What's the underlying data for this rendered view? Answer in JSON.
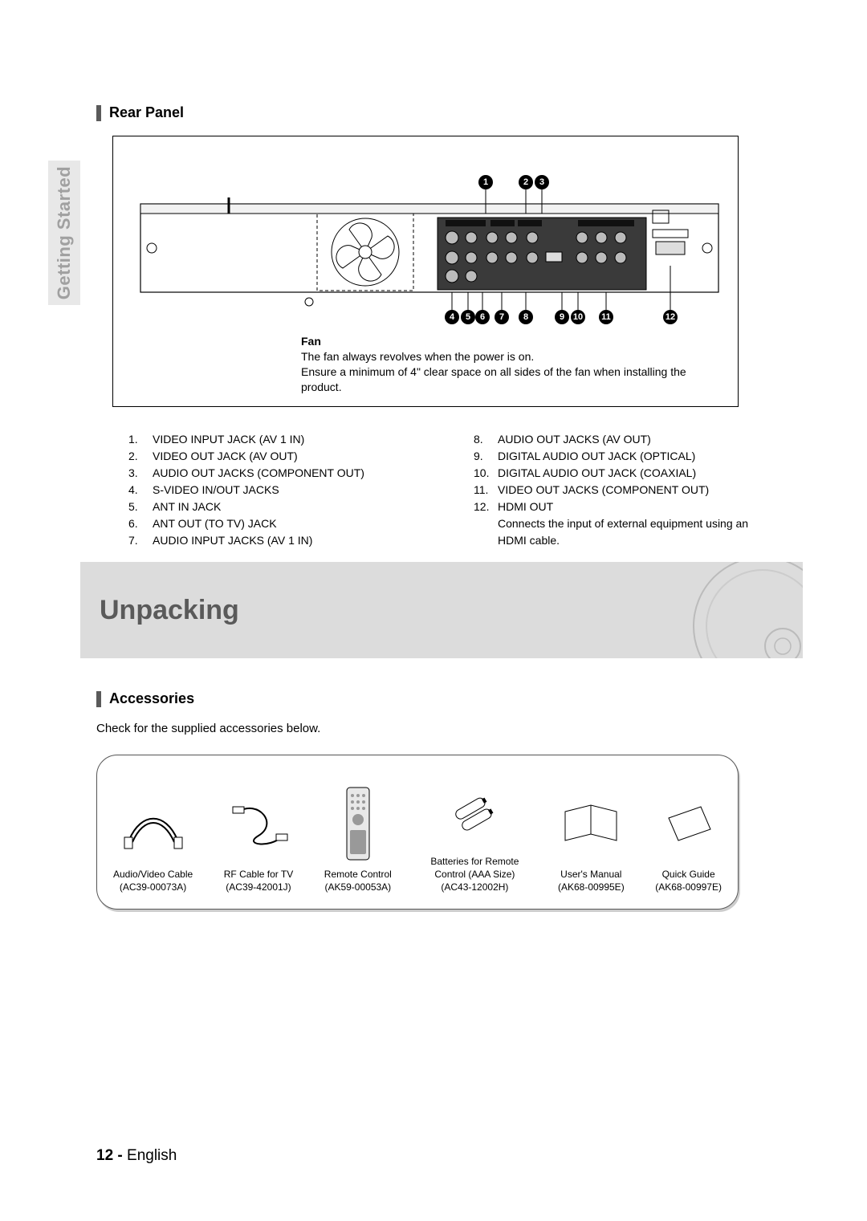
{
  "side_tab": "Getting Started",
  "rear_panel": {
    "title": "Rear Panel",
    "fan_label": "Fan",
    "fan_text1": "The fan always revolves when the power is on.",
    "fan_text2": "Ensure a minimum of 4\" clear space on all sides of the fan when installing the product.",
    "callouts_top": [
      "1",
      "2",
      "3"
    ],
    "callouts_bottom": [
      "4",
      "5",
      "6",
      "7",
      "8",
      "9",
      "10",
      "11",
      "12"
    ],
    "jacks_left": [
      {
        "n": "1.",
        "t": "VIDEO INPUT JACK (AV 1 IN)"
      },
      {
        "n": "2.",
        "t": "VIDEO OUT JACK (AV OUT)"
      },
      {
        "n": "3.",
        "t": "AUDIO OUT JACKS (COMPONENT OUT)"
      },
      {
        "n": "4.",
        "t": "S-VIDEO IN/OUT JACKS"
      },
      {
        "n": "5.",
        "t": "ANT IN JACK"
      },
      {
        "n": "6.",
        "t": "ANT OUT (TO TV) JACK"
      },
      {
        "n": "7.",
        "t": "AUDIO INPUT JACKS (AV 1 IN)"
      }
    ],
    "jacks_right": [
      {
        "n": "8.",
        "t": "AUDIO OUT JACKS (AV OUT)"
      },
      {
        "n": "9.",
        "t": "DIGITAL AUDIO OUT JACK (OPTICAL)"
      },
      {
        "n": "10.",
        "t": "DIGITAL AUDIO OUT JACK (COAXIAL)"
      },
      {
        "n": "11.",
        "t": "VIDEO OUT JACKS (COMPONENT OUT)"
      },
      {
        "n": "12.",
        "t": "HDMI OUT"
      },
      {
        "n": "",
        "t": "Connects the input of external equipment using an HDMI cable."
      }
    ]
  },
  "unpacking_title": "Unpacking",
  "accessories": {
    "title": "Accessories",
    "intro": "Check for the supplied accessories below.",
    "items": [
      {
        "name": "Audio/Video Cable",
        "part": "(AC39-00073A)"
      },
      {
        "name": "RF Cable for TV",
        "part": "(AC39-42001J)"
      },
      {
        "name": "Remote Control",
        "part": "(AK59-00053A)"
      },
      {
        "name": "Batteries for Remote Control (AAA Size)",
        "part": "(AC43-12002H)"
      },
      {
        "name": "User's Manual",
        "part": "(AK68-00995E)"
      },
      {
        "name": "Quick Guide",
        "part": "(AK68-00997E)"
      }
    ]
  },
  "footer": {
    "page": "12 -",
    "lang": "English"
  },
  "colors": {
    "band_bg": "#dcdcdc",
    "band_text": "#5a5a5a",
    "sidetab_bg": "#e8e8e8",
    "sidetab_text": "#a0a0a0"
  }
}
